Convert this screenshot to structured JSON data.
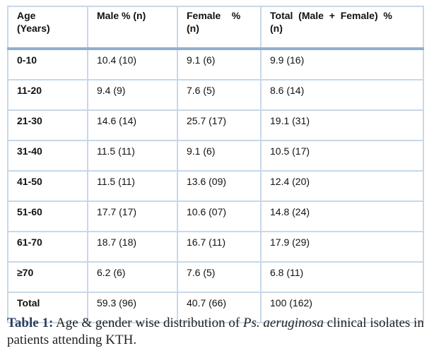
{
  "table": {
    "headers": [
      "Age\n(Years)",
      "Male % (n)",
      "Female    %\n(n)",
      "Total  (Male  +  Female)  %\n(n)"
    ],
    "rows": [
      [
        "0-10",
        "10.4 (10)",
        "9.1 (6)",
        "9.9 (16)"
      ],
      [
        "11-20",
        "9.4 (9)",
        "7.6 (5)",
        "8.6 (14)"
      ],
      [
        "21-30",
        "14.6 (14)",
        "25.7 (17)",
        "19.1 (31)"
      ],
      [
        "31-40",
        "11.5 (11)",
        "9.1 (6)",
        "10.5 (17)"
      ],
      [
        "41-50",
        "11.5 (11)",
        "13.6 (09)",
        "12.4 (20)"
      ],
      [
        "51-60",
        "17.7 (17)",
        "10.6 (07)",
        "14.8 (24)"
      ],
      [
        "61-70",
        "18.7 (18)",
        "16.7 (11)",
        "17.9 (29)"
      ],
      [
        "≥70",
        "6.2 (6)",
        "7.6 (5)",
        "6.8 (11)"
      ],
      [
        "Total",
        "59.3 (96)",
        "40.7 (66)",
        "100 (162)"
      ]
    ]
  },
  "caption": {
    "label": "Table 1:",
    "text_before": " Age & gender wise distribution of ",
    "italic": "Ps. aeruginosa",
    "text_after": " clinical isolates in patients attending KTH."
  }
}
